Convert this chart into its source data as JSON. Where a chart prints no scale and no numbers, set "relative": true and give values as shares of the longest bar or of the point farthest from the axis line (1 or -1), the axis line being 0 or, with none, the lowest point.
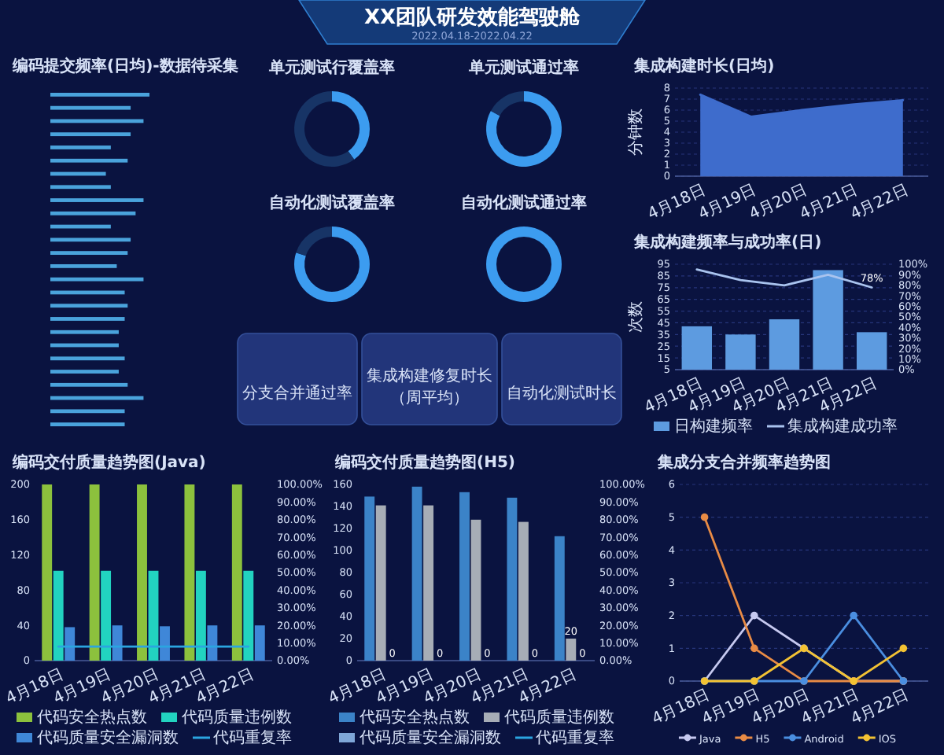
{
  "chart_data": [
    {
      "type": "other",
      "title": "XX团队研发效能驾驶舱",
      "subtitle": "2022.04.18-2022.04.22"
    },
    {
      "type": "bar",
      "orientation": "horizontal",
      "relative": true,
      "title": "编码提交频率(日均)-数据待采集",
      "categories": [
        null,
        null,
        null,
        null,
        null,
        null,
        null,
        null,
        null,
        null,
        null,
        null,
        null,
        null,
        null,
        null,
        null,
        null,
        null,
        null,
        null,
        null,
        null,
        null,
        null,
        null
      ],
      "values": [
        1,
        0.81,
        0.94,
        0.81,
        0.61,
        0.78,
        0.56,
        0.61,
        0.94,
        0.86,
        0.61,
        0.81,
        0.78,
        0.67,
        0.94,
        0.75,
        0.78,
        0.75,
        0.69,
        0.69,
        0.75,
        0.69,
        0.78,
        0.94,
        0.75,
        0.75
      ],
      "color": "#4aa3dc"
    },
    {
      "type": "donut",
      "title": "单元测试行覆盖率",
      "categories": [
        null,
        null
      ],
      "values": [
        40,
        60
      ],
      "colors": [
        "#3c9cf0",
        "#173466"
      ]
    },
    {
      "type": "donut",
      "title": "单元测试通过率",
      "categories": [
        null,
        null
      ],
      "values": [
        83,
        17
      ],
      "colors": [
        "#3c9cf0",
        "#173466"
      ]
    },
    {
      "type": "donut",
      "title": "自动化测试覆盖率",
      "categories": [
        null,
        null
      ],
      "values": [
        80,
        20
      ],
      "colors": [
        "#3c9cf0",
        "#173466"
      ]
    },
    {
      "type": "donut",
      "title": "自动化测试通过率",
      "categories": [
        null
      ],
      "values": [
        100
      ],
      "colors": [
        "#3c9cf0"
      ]
    },
    {
      "type": "other",
      "title": "分支合并通过率"
    },
    {
      "type": "other",
      "title": "集成构建修复时长",
      "subtitle": "（周平均）"
    },
    {
      "type": "other",
      "title": "自动化测试时长"
    },
    {
      "type": "area",
      "title": "集成构建时长(日均)",
      "ylabel": "分钟数",
      "categories": [
        "4月18日",
        "4月19日",
        "4月20日",
        "4月21日",
        "4月22日"
      ],
      "values": [
        7.4,
        5.4,
        6.0,
        6.5,
        6.9
      ],
      "color": "#3e6ccc",
      "ylim": [
        0,
        8
      ],
      "yticks": [
        0,
        1,
        2,
        3,
        4,
        5,
        6,
        7,
        8
      ],
      "grid": "y"
    },
    {
      "type": "bar",
      "title": "集成构建频率与成功率(日)",
      "ylabel": "次数",
      "categories": [
        "4月18日",
        "4月19日",
        "4月20日",
        "4月21日",
        "4月22日"
      ],
      "series": [
        {
          "name": "日构建频率",
          "color": "#5d9be0",
          "values": [
            42,
            35,
            48,
            90,
            37
          ]
        },
        {
          "name": "集成构建成功率",
          "type": "line",
          "axis": "y2",
          "color": "#a9c3ee",
          "values": [
            95,
            85,
            80,
            90,
            78
          ],
          "value_labels": [
            null,
            null,
            null,
            null,
            "78%"
          ]
        }
      ],
      "ylim": [
        5,
        95
      ],
      "yticks": [
        5,
        15,
        25,
        35,
        45,
        55,
        65,
        75,
        85,
        95
      ],
      "y2lim": [
        0,
        100
      ],
      "y2ticks": [
        {
          "value": 0,
          "label": "0%"
        },
        {
          "value": 10,
          "label": "10%"
        },
        {
          "value": 20,
          "label": "20%"
        },
        {
          "value": 30,
          "label": "30%"
        },
        {
          "value": 40,
          "label": "40%"
        },
        {
          "value": 50,
          "label": "50%"
        },
        {
          "value": 60,
          "label": "60%"
        },
        {
          "value": 70,
          "label": "70%"
        },
        {
          "value": 80,
          "label": "80%"
        },
        {
          "value": 90,
          "label": "90%"
        },
        {
          "value": 100,
          "label": "100%"
        }
      ],
      "legend": "bottom",
      "grid": "y"
    },
    {
      "type": "bar",
      "title": "编码交付质量趋势图(Java)",
      "categories": [
        "4月18日",
        "4月19日",
        "4月20日",
        "4月21日",
        "4月22日"
      ],
      "series": [
        {
          "name": "代码安全热点数",
          "color": "#8cc13d",
          "values": [
            200,
            200,
            200,
            200,
            200
          ]
        },
        {
          "name": "代码质量违例数",
          "color": "#22d3c0",
          "values": [
            102,
            102,
            102,
            102,
            102
          ]
        },
        {
          "name": "代码质量安全漏洞数",
          "color": "#3f87d8",
          "values": [
            38,
            40,
            39,
            40,
            40
          ]
        },
        {
          "name": "代码重复率",
          "type": "line",
          "axis": "y2",
          "color": "#2ba5e0",
          "values": [
            8,
            8,
            8,
            8,
            8
          ]
        }
      ],
      "ylim": [
        0,
        200
      ],
      "yticks": [
        0,
        40,
        80,
        120,
        160,
        200
      ],
      "y2lim": [
        0,
        100
      ],
      "y2ticks": [
        {
          "value": 0,
          "label": "0.00%"
        },
        {
          "value": 10,
          "label": "10.00%"
        },
        {
          "value": 20,
          "label": "20.00%"
        },
        {
          "value": 30,
          "label": "30.00%"
        },
        {
          "value": 40,
          "label": "40.00%"
        },
        {
          "value": 50,
          "label": "50.00%"
        },
        {
          "value": 60,
          "label": "60.00%"
        },
        {
          "value": 70,
          "label": "70.00%"
        },
        {
          "value": 80,
          "label": "80.00%"
        },
        {
          "value": 90,
          "label": "90.00%"
        },
        {
          "value": 100,
          "label": "100.00%"
        }
      ],
      "legend": "bottom"
    },
    {
      "type": "bar",
      "title": "编码交付质量趋势图(H5)",
      "categories": [
        "4月18日",
        "4月19日",
        "4月20日",
        "4月21日",
        "4月22日"
      ],
      "series": [
        {
          "name": "代码安全热点数",
          "color": "#3b83c8",
          "values": [
            149,
            158,
            153,
            148,
            113
          ]
        },
        {
          "name": "代码质量违例数",
          "color": "#a7adb6",
          "values": [
            141,
            141,
            128,
            126,
            20
          ],
          "value_labels": [
            null,
            null,
            null,
            null,
            "20"
          ]
        },
        {
          "name": "代码质量安全漏洞数",
          "color": "#7fa7d8",
          "values": [
            0,
            0,
            0,
            0,
            0
          ],
          "value_labels": [
            "0",
            "0",
            "0",
            "0",
            "0"
          ]
        },
        {
          "name": "代码重复率",
          "type": "line",
          "axis": "y2",
          "color": "#2ba5e0",
          "values": [
            null,
            null,
            null,
            null,
            null
          ]
        }
      ],
      "ylim": [
        0,
        160
      ],
      "yticks": [
        0,
        20,
        40,
        60,
        80,
        100,
        120,
        140,
        160
      ],
      "y2lim": [
        0,
        100
      ],
      "y2ticks": [
        {
          "value": 0,
          "label": "0.00%"
        },
        {
          "value": 10,
          "label": "10.00%"
        },
        {
          "value": 20,
          "label": "20.00%"
        },
        {
          "value": 30,
          "label": "30.00%"
        },
        {
          "value": 40,
          "label": "40.00%"
        },
        {
          "value": 50,
          "label": "50.00%"
        },
        {
          "value": 60,
          "label": "60.00%"
        },
        {
          "value": 70,
          "label": "70.00%"
        },
        {
          "value": 80,
          "label": "80.00%"
        },
        {
          "value": 90,
          "label": "90.00%"
        },
        {
          "value": 100,
          "label": "100.00%"
        }
      ],
      "legend": "bottom"
    },
    {
      "type": "line",
      "title": "集成分支合并频率趋势图",
      "categories": [
        "4月18日",
        "4月19日",
        "4月20日",
        "4月21日",
        "4月22日"
      ],
      "series": [
        {
          "name": "Java",
          "color": "#c6c9f0",
          "values": [
            0,
            2,
            1,
            0,
            0
          ]
        },
        {
          "name": "H5",
          "color": "#e88b45",
          "values": [
            5,
            1,
            0,
            0,
            0
          ]
        },
        {
          "name": "Android",
          "color": "#4a8ee0",
          "values": [
            0,
            0,
            0,
            2,
            0
          ]
        },
        {
          "name": "IOS",
          "color": "#f3c233",
          "values": [
            0,
            0,
            1,
            0,
            1
          ]
        }
      ],
      "ylim": [
        0,
        6
      ],
      "yticks": [
        0,
        1,
        2,
        3,
        4,
        5,
        6
      ],
      "legend": "bottom",
      "grid": "y",
      "marker": "circle"
    }
  ]
}
